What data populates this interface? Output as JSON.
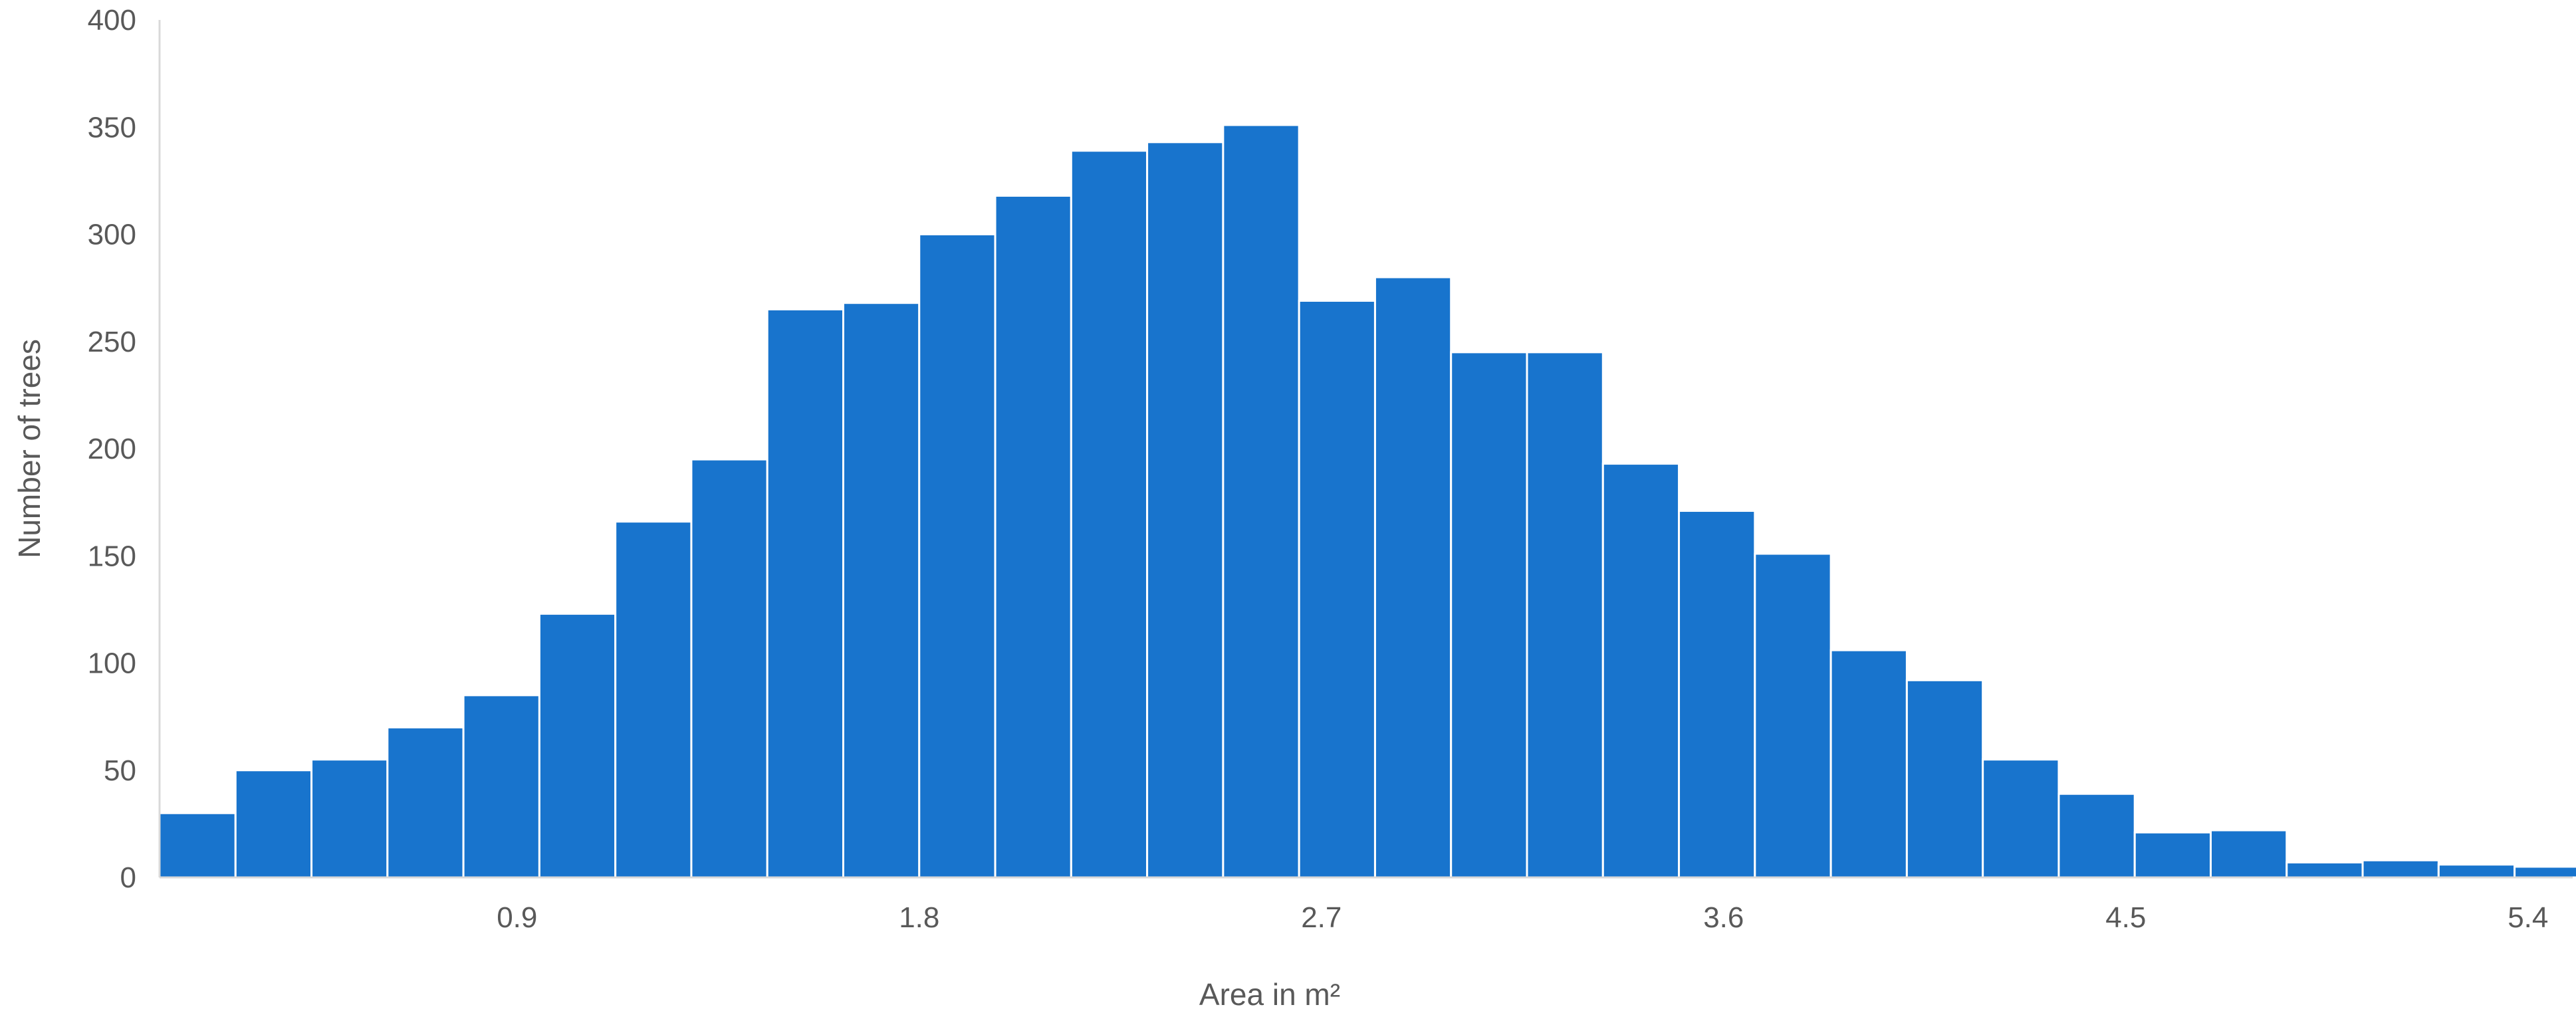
{
  "chart_data": {
    "type": "bar",
    "title": "",
    "xlabel": "Area in m²",
    "ylabel": "Number of trees",
    "ylim": [
      0,
      400
    ],
    "xlim": [
      0.1,
      5.5
    ],
    "yticks": [
      0,
      50,
      100,
      150,
      200,
      250,
      300,
      350,
      400
    ],
    "xticks": [
      "0.9",
      "1.8",
      "2.7",
      "3.6",
      "4.5",
      "5.4"
    ],
    "xtick_values": [
      0.9,
      1.8,
      2.7,
      3.6,
      4.5,
      5.4
    ],
    "bin_width": 0.17,
    "bin_start": 0.1,
    "values": [
      30,
      50,
      55,
      70,
      85,
      123,
      166,
      195,
      265,
      268,
      300,
      318,
      339,
      343,
      351,
      269,
      280,
      245,
      245,
      193,
      171,
      151,
      106,
      92,
      55,
      39,
      21,
      22,
      7,
      8,
      6,
      5
    ],
    "bar_color": "#1874CD",
    "grid": false,
    "legend": "none"
  }
}
